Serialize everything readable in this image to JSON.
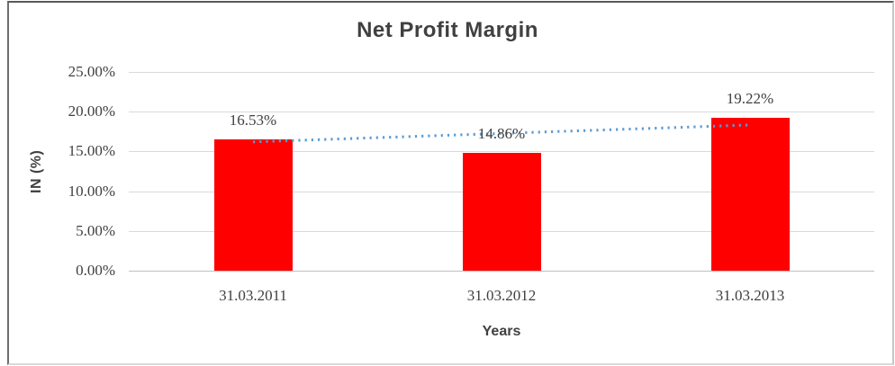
{
  "chart_data": {
    "type": "bar",
    "title": "Net Profit Margin",
    "xlabel": "Years",
    "ylabel": "IN (%)",
    "categories": [
      "31.03.2011",
      "31.03.2012",
      "31.03.2013"
    ],
    "values": [
      16.53,
      14.86,
      19.22
    ],
    "data_labels": [
      "16.53%",
      "14.86%",
      "19.22%"
    ],
    "yticks": [
      0,
      5,
      10,
      15,
      20,
      25
    ],
    "ytick_labels": [
      "0.00%",
      "5.00%",
      "10.00%",
      "15.00%",
      "20.00%",
      "25.00%"
    ],
    "ylim": [
      0,
      25
    ],
    "grid": true,
    "legend": "none",
    "bar_color": "#ff0000",
    "gridline_color": "#d9d9d9",
    "axis_line_color": "#bfbfbf",
    "text_color": "#3f3f3f",
    "trendline": {
      "type": "linear",
      "style": "dotted",
      "color": "#5b9bd5",
      "start_value": 16.2,
      "end_value": 18.33
    }
  }
}
